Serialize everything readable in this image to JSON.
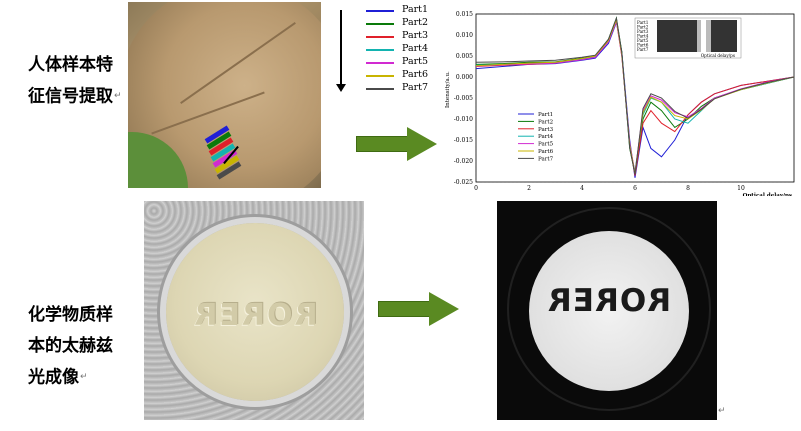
{
  "top_caption": {
    "line1": "人体样本特",
    "line2": "征信号提取"
  },
  "bottom_caption": {
    "line1": "化学物质样",
    "line2": "本的太赫兹",
    "line3": "光成像"
  },
  "paragraph_mark": "↵",
  "legend_items": [
    {
      "label": "Part1",
      "color": "#1f1fd6"
    },
    {
      "label": "Part2",
      "color": "#0a7a0a"
    },
    {
      "label": "Part3",
      "color": "#e0202a"
    },
    {
      "label": "Part4",
      "color": "#13b3b0"
    },
    {
      "label": "Part5",
      "color": "#d12ad1"
    },
    {
      "label": "Part6",
      "color": "#c8b400"
    },
    {
      "label": "Part7",
      "color": "#4a4a4a"
    }
  ],
  "tablet_embossed_text": "RORER",
  "thz_image_text": "RORER",
  "arrow_color": "#5a8a22",
  "chart_data": {
    "type": "line",
    "xlabel": "Optical delay/ps",
    "ylabel": "Intensity/a.u.",
    "xlim": [
      0,
      12
    ],
    "ylim": [
      -0.025,
      0.015
    ],
    "x_ticks": [
      "0",
      "2",
      "4",
      "6",
      "8",
      "10"
    ],
    "y_ticks": [
      "0.015",
      "0.010",
      "0.005",
      "0.000",
      "-0.005",
      "-0.010",
      "-0.015",
      "-0.020",
      "-0.025"
    ],
    "grid": true,
    "legend_placement": "bottom-left",
    "inset_legend_placement": "top-right",
    "inset_xlabel": "Optical delay/ps",
    "inset_rows": [
      "Part1",
      "Part2",
      "Part3",
      "Part4",
      "Part5",
      "Part6",
      "Part7"
    ],
    "x": [
      0,
      1,
      2,
      3,
      4,
      4.5,
      5,
      5.3,
      5.5,
      5.8,
      6.0,
      6.3,
      6.6,
      7.0,
      7.5,
      8.0,
      8.5,
      9,
      10,
      11,
      12
    ],
    "series": [
      {
        "name": "Part1",
        "color": "#1f1fd6",
        "values": [
          0.002,
          0.0025,
          0.003,
          0.0032,
          0.004,
          0.0045,
          0.008,
          0.013,
          0.006,
          -0.015,
          -0.024,
          -0.012,
          -0.017,
          -0.019,
          -0.015,
          -0.009,
          -0.006,
          -0.004,
          -0.002,
          -0.001,
          0.0
        ]
      },
      {
        "name": "Part2",
        "color": "#0a7a0a",
        "values": [
          0.003,
          0.0032,
          0.0035,
          0.0036,
          0.0045,
          0.005,
          0.009,
          0.014,
          0.006,
          -0.017,
          -0.023,
          -0.01,
          -0.006,
          -0.008,
          -0.012,
          -0.01,
          -0.007,
          -0.005,
          -0.003,
          -0.0015,
          0.0
        ]
      },
      {
        "name": "Part3",
        "color": "#e0202a",
        "values": [
          0.0025,
          0.0028,
          0.003,
          0.0033,
          0.0042,
          0.0048,
          0.0085,
          0.0135,
          0.005,
          -0.016,
          -0.0235,
          -0.011,
          -0.008,
          -0.011,
          -0.013,
          -0.009,
          -0.006,
          -0.004,
          -0.002,
          -0.001,
          0.0
        ]
      },
      {
        "name": "Part4",
        "color": "#13b3b0",
        "values": [
          0.0028,
          0.003,
          0.0032,
          0.0034,
          0.0043,
          0.0049,
          0.0088,
          0.0138,
          0.0055,
          -0.0165,
          -0.0225,
          -0.009,
          -0.005,
          -0.006,
          -0.01,
          -0.011,
          -0.008,
          -0.005,
          -0.003,
          -0.0015,
          0.0
        ]
      },
      {
        "name": "Part5",
        "color": "#d12ad1",
        "values": [
          0.0026,
          0.0029,
          0.0031,
          0.0033,
          0.0041,
          0.0047,
          0.0084,
          0.0132,
          0.005,
          -0.0158,
          -0.0228,
          -0.008,
          -0.0045,
          -0.0055,
          -0.0085,
          -0.0095,
          -0.0075,
          -0.005,
          -0.0028,
          -0.0012,
          0.0
        ]
      },
      {
        "name": "Part6",
        "color": "#c8b400",
        "values": [
          0.0027,
          0.003,
          0.0033,
          0.0035,
          0.0044,
          0.005,
          0.0087,
          0.0136,
          0.0053,
          -0.0162,
          -0.023,
          -0.0085,
          -0.0048,
          -0.006,
          -0.0092,
          -0.01,
          -0.0078,
          -0.0052,
          -0.003,
          -0.0014,
          0.0
        ]
      },
      {
        "name": "Part7",
        "color": "#4a4a4a",
        "values": [
          0.0035,
          0.0036,
          0.0038,
          0.004,
          0.0047,
          0.0052,
          0.009,
          0.014,
          0.0058,
          -0.0168,
          -0.0232,
          -0.0075,
          -0.004,
          -0.005,
          -0.0082,
          -0.0098,
          -0.0077,
          -0.0052,
          -0.0029,
          -0.0013,
          0.0
        ]
      }
    ]
  }
}
